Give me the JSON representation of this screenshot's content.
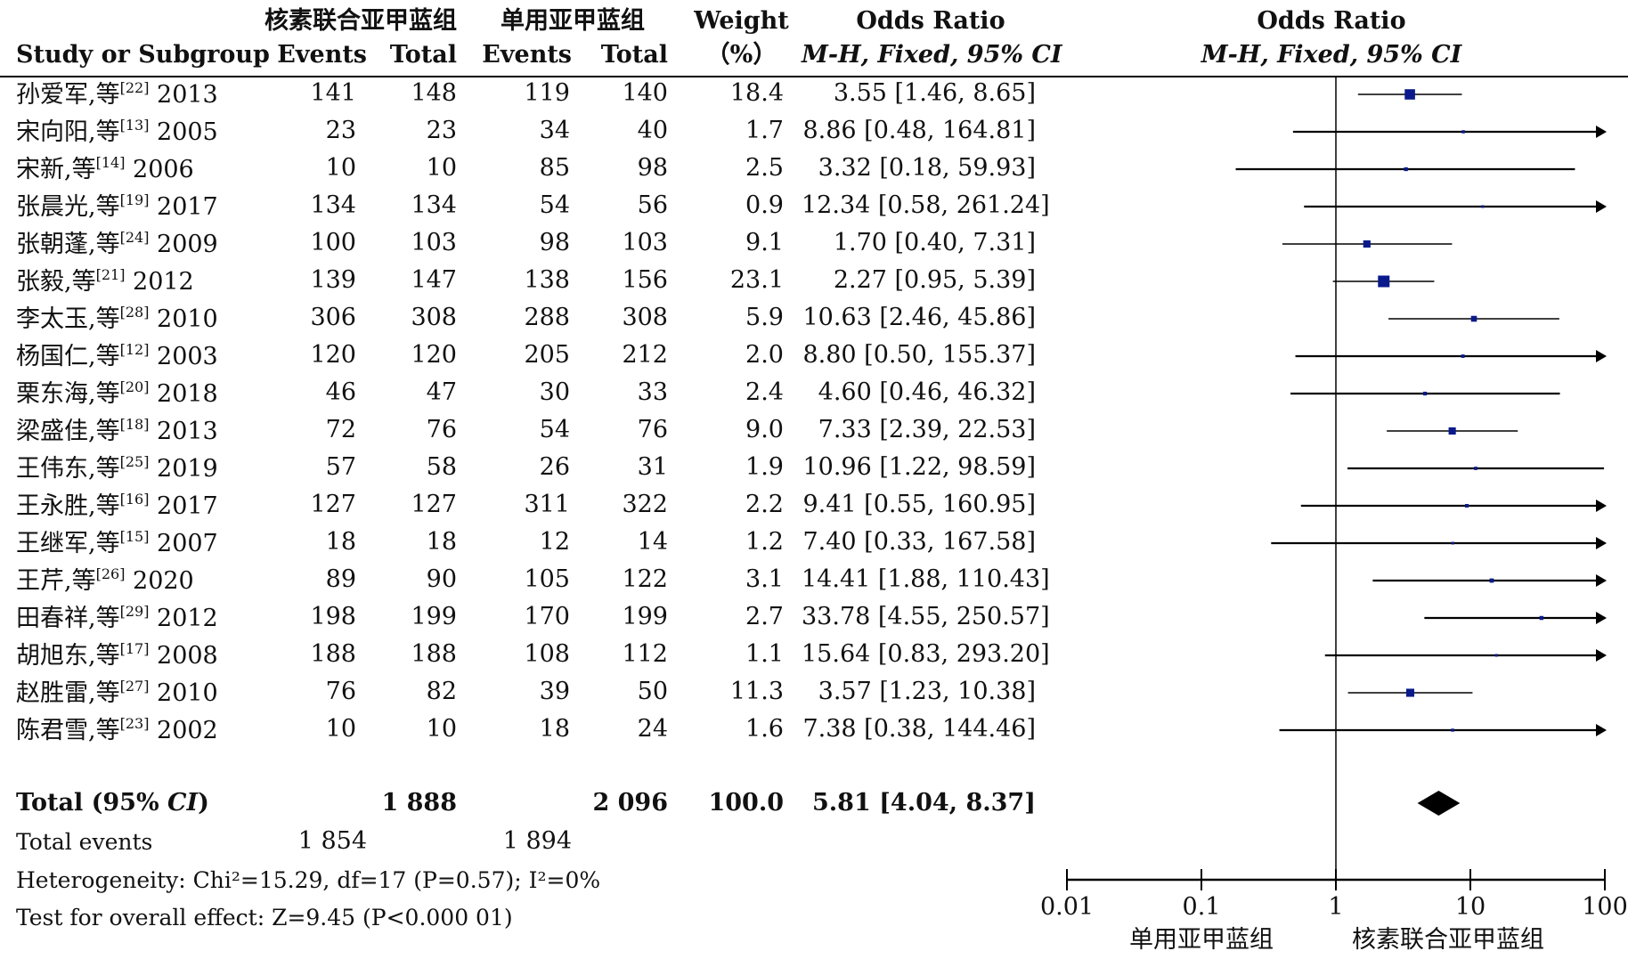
{
  "chart_data": {
    "type": "forest",
    "headers": {
      "study": "Study or Subgroup",
      "exp_group": "核素联合亚甲蓝组",
      "ctrl_group": "单用亚甲蓝组",
      "events": "Events",
      "total": "Total",
      "weight_top": "Weight",
      "weight_bottom": "（%）",
      "or_title": "Odds Ratio",
      "or_method_a": "M-H, Fixed, 95% ",
      "or_method_b": "CI",
      "plot_title": "Odds Ratio",
      "plot_method_a": "M-H, Fixed, 95% ",
      "plot_method_b": "CI"
    },
    "studies": [
      {
        "name": "孙爱军,等",
        "ref": "[22]",
        "year": "2013",
        "exp_events": "141",
        "exp_total": "148",
        "ctrl_events": "119",
        "ctrl_total": "140",
        "weight": "18.4",
        "or_text": "3.55 [1.46, 8.65]",
        "or": 3.55,
        "lo": 1.46,
        "hi": 8.65
      },
      {
        "name": "宋向阳,等",
        "ref": "[13]",
        "year": "2005",
        "exp_events": "23",
        "exp_total": "23",
        "ctrl_events": "34",
        "ctrl_total": "40",
        "weight": "1.7",
        "or_text": "8.86 [0.48, 164.81]",
        "or": 8.86,
        "lo": 0.48,
        "hi": 164.81
      },
      {
        "name": "宋新,等",
        "ref": "[14]",
        "year": "2006",
        "exp_events": "10",
        "exp_total": "10",
        "ctrl_events": "85",
        "ctrl_total": "98",
        "weight": "2.5",
        "or_text": "3.32 [0.18, 59.93]",
        "or": 3.32,
        "lo": 0.18,
        "hi": 59.93
      },
      {
        "name": "张晨光,等",
        "ref": "[19]",
        "year": "2017",
        "exp_events": "134",
        "exp_total": "134",
        "ctrl_events": "54",
        "ctrl_total": "56",
        "weight": "0.9",
        "or_text": "12.34 [0.58, 261.24]",
        "or": 12.34,
        "lo": 0.58,
        "hi": 261.24
      },
      {
        "name": "张朝蓬,等",
        "ref": "[24]",
        "year": "2009",
        "exp_events": "100",
        "exp_total": "103",
        "ctrl_events": "98",
        "ctrl_total": "103",
        "weight": "9.1",
        "or_text": "1.70 [0.40, 7.31]",
        "or": 1.7,
        "lo": 0.4,
        "hi": 7.31
      },
      {
        "name": "张毅,等",
        "ref": "[21]",
        "year": "2012",
        "exp_events": "139",
        "exp_total": "147",
        "ctrl_events": "138",
        "ctrl_total": "156",
        "weight": "23.1",
        "or_text": "2.27 [0.95, 5.39]",
        "or": 2.27,
        "lo": 0.95,
        "hi": 5.39
      },
      {
        "name": "李太玉,等",
        "ref": "[28]",
        "year": "2010",
        "exp_events": "306",
        "exp_total": "308",
        "ctrl_events": "288",
        "ctrl_total": "308",
        "weight": "5.9",
        "or_text": "10.63 [2.46, 45.86]",
        "or": 10.63,
        "lo": 2.46,
        "hi": 45.86
      },
      {
        "name": "杨国仁,等",
        "ref": "[12]",
        "year": "2003",
        "exp_events": "120",
        "exp_total": "120",
        "ctrl_events": "205",
        "ctrl_total": "212",
        "weight": "2.0",
        "or_text": "8.80 [0.50, 155.37]",
        "or": 8.8,
        "lo": 0.5,
        "hi": 155.37
      },
      {
        "name": "栗东海,等",
        "ref": "[20]",
        "year": "2018",
        "exp_events": "46",
        "exp_total": "47",
        "ctrl_events": "30",
        "ctrl_total": "33",
        "weight": "2.4",
        "or_text": "4.60 [0.46, 46.32]",
        "or": 4.6,
        "lo": 0.46,
        "hi": 46.32
      },
      {
        "name": "梁盛佳,等",
        "ref": "[18]",
        "year": "2013",
        "exp_events": "72",
        "exp_total": "76",
        "ctrl_events": "54",
        "ctrl_total": "76",
        "weight": "9.0",
        "or_text": "7.33 [2.39, 22.53]",
        "or": 7.33,
        "lo": 2.39,
        "hi": 22.53
      },
      {
        "name": "王伟东,等",
        "ref": "[25]",
        "year": "2019",
        "exp_events": "57",
        "exp_total": "58",
        "ctrl_events": "26",
        "ctrl_total": "31",
        "weight": "1.9",
        "or_text": "10.96 [1.22, 98.59]",
        "or": 10.96,
        "lo": 1.22,
        "hi": 98.59
      },
      {
        "name": "王永胜,等",
        "ref": "[16]",
        "year": "2017",
        "exp_events": "127",
        "exp_total": "127",
        "ctrl_events": "311",
        "ctrl_total": "322",
        "weight": "2.2",
        "or_text": "9.41 [0.55, 160.95]",
        "or": 9.41,
        "lo": 0.55,
        "hi": 160.95
      },
      {
        "name": "王继军,等",
        "ref": "[15]",
        "year": "2007",
        "exp_events": "18",
        "exp_total": "18",
        "ctrl_events": "12",
        "ctrl_total": "14",
        "weight": "1.2",
        "or_text": "7.40 [0.33, 167.58]",
        "or": 7.4,
        "lo": 0.33,
        "hi": 167.58
      },
      {
        "name": "王芹,等",
        "ref": "[26]",
        "year": "2020",
        "exp_events": "89",
        "exp_total": "90",
        "ctrl_events": "105",
        "ctrl_total": "122",
        "weight": "3.1",
        "or_text": "14.41 [1.88, 110.43]",
        "or": 14.41,
        "lo": 1.88,
        "hi": 110.43
      },
      {
        "name": "田春祥,等",
        "ref": "[29]",
        "year": "2012",
        "exp_events": "198",
        "exp_total": "199",
        "ctrl_events": "170",
        "ctrl_total": "199",
        "weight": "2.7",
        "or_text": "33.78 [4.55, 250.57]",
        "or": 33.78,
        "lo": 4.55,
        "hi": 250.57
      },
      {
        "name": "胡旭东,等",
        "ref": "[17]",
        "year": "2008",
        "exp_events": "188",
        "exp_total": "188",
        "ctrl_events": "108",
        "ctrl_total": "112",
        "weight": "1.1",
        "or_text": "15.64 [0.83, 293.20]",
        "or": 15.64,
        "lo": 0.83,
        "hi": 293.2
      },
      {
        "name": "赵胜雷,等",
        "ref": "[27]",
        "year": "2010",
        "exp_events": "76",
        "exp_total": "82",
        "ctrl_events": "39",
        "ctrl_total": "50",
        "weight": "11.3",
        "or_text": "3.57 [1.23, 10.38]",
        "or": 3.57,
        "lo": 1.23,
        "hi": 10.38
      },
      {
        "name": "陈君雪,等",
        "ref": "[23]",
        "year": "2002",
        "exp_events": "10",
        "exp_total": "10",
        "ctrl_events": "18",
        "ctrl_total": "24",
        "weight": "1.6",
        "or_text": "7.38 [0.38, 144.46]",
        "or": 7.38,
        "lo": 0.38,
        "hi": 144.46
      }
    ],
    "total": {
      "label_a": "Total (95% ",
      "label_b": "CI",
      "label_c": ")",
      "exp_total": "1 888",
      "ctrl_total": "2 096",
      "weight": "100.0",
      "or_text": "5.81 [4.04, 8.37]",
      "or": 5.81,
      "lo": 4.04,
      "hi": 8.37
    },
    "total_events": {
      "label": "Total events",
      "exp": "1 854",
      "ctrl": "1 894"
    },
    "heterogeneity": "Heterogeneity: Chi²=15.29, df=17 (P=0.57); I²=0%",
    "overall_effect": "Test for overall effect: Z=9.45 (P<0.000 01)",
    "x_axis": {
      "scale": "log",
      "range": [
        0.01,
        100
      ],
      "ticks": [
        0.01,
        0.1,
        1,
        10,
        100
      ],
      "tick_labels": [
        "0.01",
        "0.1",
        "1",
        "10",
        "100"
      ],
      "null_line": 1,
      "favours_left": "单用亚甲蓝组",
      "favours_right": "核素联合亚甲蓝组"
    },
    "colors": {
      "square": "#0a1a8c",
      "line": "#000000",
      "diamond": "#000000"
    }
  }
}
